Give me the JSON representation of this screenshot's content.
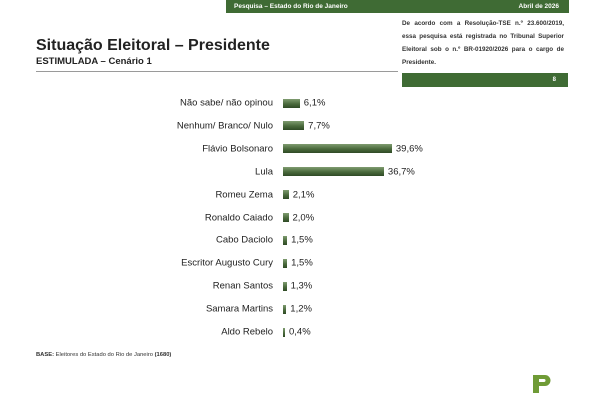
{
  "header": {
    "survey_label": "Pesquisa – Estado do Rio de Janeiro",
    "date": "Abril de 2026",
    "notice": "De acordo com a Resolução-TSE n.º 23.600/2019, essa pesquisa está registrada no Tribunal Superior Eleitoral sob o n.º BR-01920/2026 para o cargo de Presidente.",
    "page_number": "8"
  },
  "footnote": {
    "label": "BASE:",
    "text": " Eleitores do Estado do Rio de Janeiro ",
    "count": "(1680)"
  },
  "colors": {
    "accent": "#3f6b34",
    "bar": "#4a6a3c",
    "logo": "#6f9b36"
  },
  "icons": {
    "logo": "p-logo-icon"
  },
  "chart_data": {
    "type": "bar",
    "orientation": "horizontal",
    "title": "Situação Eleitoral – Presidente",
    "subtitle": "ESTIMULADA – Cenário 1",
    "categories": [
      "Não sabe/ não opinou",
      "Nenhum/ Branco/ Nulo",
      "Flávio Bolsonaro",
      "Lula",
      "Romeu Zema",
      "Ronaldo Caiado",
      "Cabo Daciolo",
      "Escritor Augusto Cury",
      "Renan Santos",
      "Samara Martins",
      "Aldo Rebelo"
    ],
    "values": [
      6.1,
      7.7,
      39.6,
      36.7,
      2.1,
      2.0,
      1.5,
      1.5,
      1.3,
      1.2,
      0.4
    ],
    "value_labels": [
      "6,1%",
      "7,7%",
      "39,6%",
      "36,7%",
      "2,1%",
      "2,0%",
      "1,5%",
      "1,5%",
      "1,3%",
      "1,2%",
      "0,4%"
    ],
    "xlim": [
      0,
      40
    ],
    "grid": false,
    "legend": "none"
  }
}
